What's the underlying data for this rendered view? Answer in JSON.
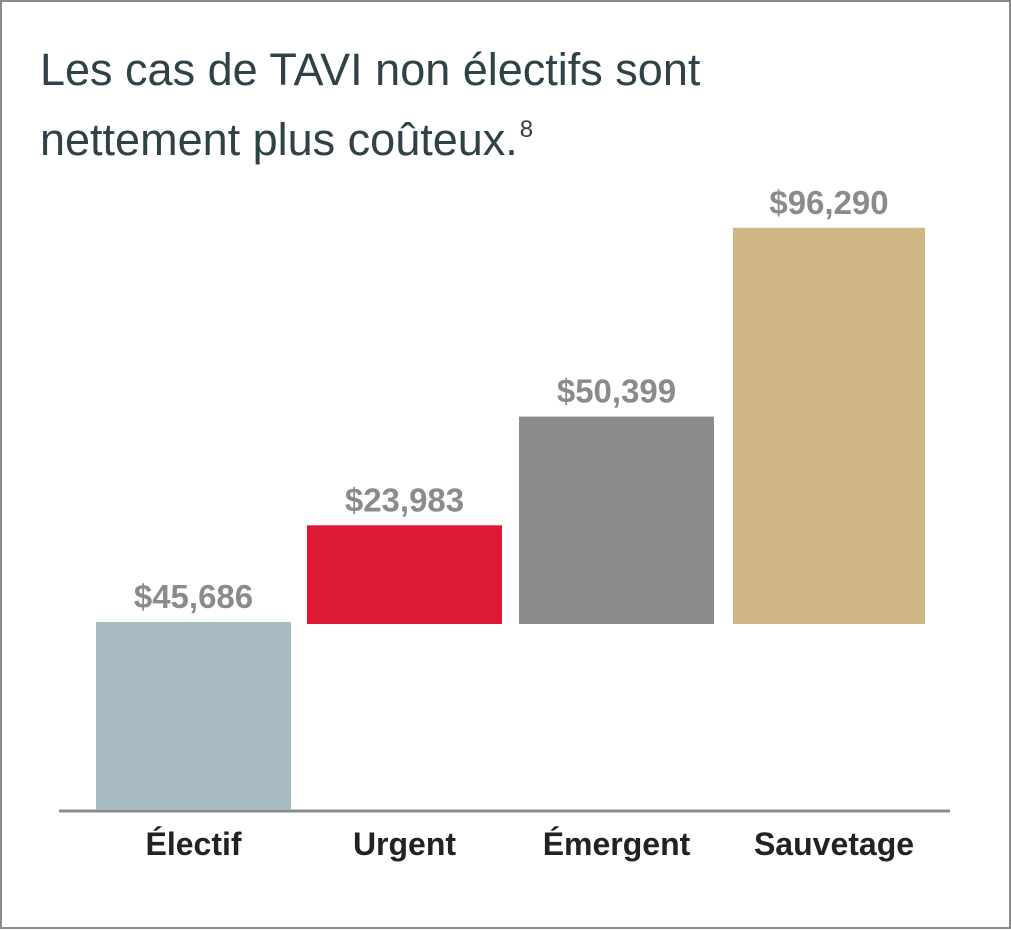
{
  "chart_data": {
    "type": "bar",
    "title": "Les cas de TAVI non électifs sont nettement plus coûteux.",
    "title_line1": "Les cas de TAVI non électifs sont",
    "title_line2": "nettement plus coûteux.",
    "title_footnote": "8",
    "categories": [
      "Électif",
      "Urgent",
      "Émergent",
      "Sauvetage"
    ],
    "values": [
      45686,
      23983,
      50399,
      96290
    ],
    "value_labels": [
      "$45,686",
      "$23,983",
      "$50,399",
      "$96,290"
    ],
    "stacked_on_first": true,
    "colors": [
      "#a7bbc0",
      "#dc1a33",
      "#8a8d8c",
      "#cfb886"
    ],
    "xlabel": "",
    "ylabel": "",
    "grid": false,
    "legend": "none"
  }
}
